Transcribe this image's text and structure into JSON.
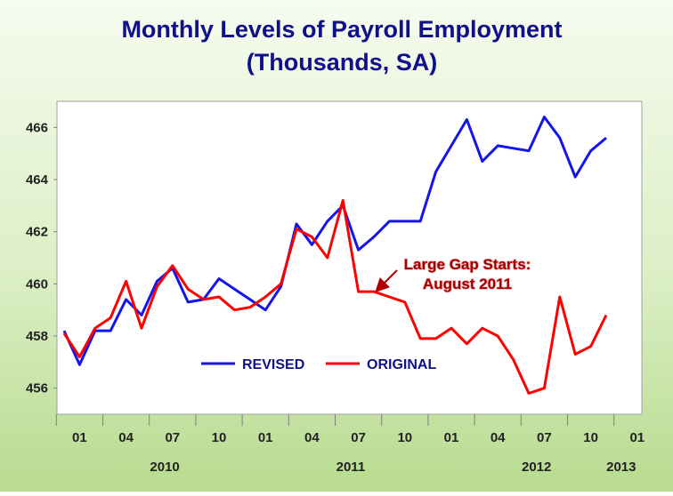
{
  "chart_data": {
    "type": "line",
    "title": "Monthly Levels of Payroll Employment",
    "subtitle": "(Thousands, SA)",
    "categories": [
      null,
      "01",
      null,
      null,
      "04",
      null,
      null,
      "07",
      null,
      null,
      "10",
      null,
      null,
      "01",
      null,
      null,
      "04",
      null,
      null,
      "07",
      null,
      null,
      "10",
      null,
      null,
      "01",
      null,
      null,
      "04",
      null,
      null,
      "07",
      null,
      null,
      "10",
      null,
      null,
      "01"
    ],
    "year_labels": [
      "2010",
      "2011",
      "2012",
      "2013"
    ],
    "series": [
      {
        "name": "REVISED",
        "color": "#1414ee",
        "values": [
          458.2,
          456.9,
          458.2,
          458.2,
          459.4,
          458.8,
          460.1,
          460.6,
          459.3,
          459.4,
          460.2,
          459.8,
          459.4,
          459.0,
          459.9,
          462.3,
          461.5,
          462.4,
          463.0,
          461.3,
          461.8,
          462.4,
          462.4,
          462.4,
          464.3,
          465.3,
          466.3,
          464.7,
          465.3,
          465.2,
          465.1,
          466.4,
          465.6,
          464.1,
          465.1,
          465.6,
          null,
          null
        ]
      },
      {
        "name": "ORIGINAL",
        "color": "#ff0000",
        "values": [
          458.1,
          457.2,
          458.3,
          458.7,
          460.1,
          458.3,
          459.9,
          460.7,
          459.8,
          459.4,
          459.5,
          459.0,
          459.1,
          459.5,
          460.0,
          462.1,
          461.8,
          461.0,
          463.2,
          459.7,
          459.7,
          459.5,
          459.3,
          457.9,
          457.9,
          458.3,
          457.7,
          458.3,
          458.0,
          457.1,
          455.8,
          456.0,
          459.5,
          457.3,
          457.6,
          458.8,
          null,
          null
        ]
      }
    ],
    "annotation": [
      "Large Gap Starts:",
      "August 2011"
    ],
    "ylim": [
      455,
      467
    ],
    "yticks": [
      456,
      458,
      460,
      462,
      464,
      466
    ],
    "grid": false,
    "legend": "bottom"
  }
}
